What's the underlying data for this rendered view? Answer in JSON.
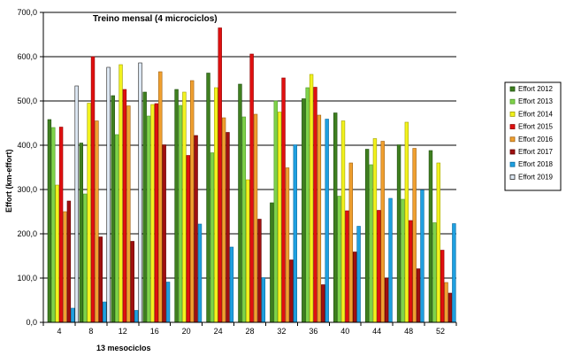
{
  "chart_data": {
    "type": "bar",
    "title": "Treino mensal (4 microciclos)",
    "xlabel": "13 mesociclos",
    "ylabel": "Effort (km-effort)",
    "categories": [
      "4",
      "8",
      "12",
      "16",
      "20",
      "24",
      "28",
      "32",
      "36",
      "40",
      "44",
      "48",
      "52"
    ],
    "ylim": [
      0,
      700
    ],
    "ytick_labels": [
      "0,0",
      "100,0",
      "200,0",
      "300,0",
      "400,0",
      "500,0",
      "600,0",
      "700,0"
    ],
    "grid": "horizontal",
    "legend_position": "right",
    "series": [
      {
        "name": "Effort 2012",
        "color": "#3f7f1f",
        "border": "#1f4f0f",
        "values": [
          458,
          405,
          512,
          520,
          526,
          563,
          538,
          270,
          505,
          473,
          391,
          401,
          388
        ]
      },
      {
        "name": "Effort 2013",
        "color": "#7fd24a",
        "border": "#4f9a2a",
        "values": [
          440,
          290,
          424,
          466,
          490,
          383,
          464,
          500,
          530,
          285,
          356,
          278,
          225
        ]
      },
      {
        "name": "Effort 2014",
        "color": "#f2f21e",
        "border": "#a0a000",
        "values": [
          310,
          495,
          582,
          492,
          520,
          530,
          322,
          475,
          560,
          455,
          415,
          452,
          360
        ]
      },
      {
        "name": "Effort 2015",
        "color": "#e01010",
        "border": "#900000",
        "values": [
          441,
          600,
          526,
          494,
          377,
          665,
          606,
          552,
          531,
          252,
          253,
          230,
          163
        ]
      },
      {
        "name": "Effort 2016",
        "color": "#f0a030",
        "border": "#a06010",
        "values": [
          250,
          455,
          489,
          566,
          546,
          462,
          470,
          349,
          468,
          360,
          409,
          393,
          90
        ]
      },
      {
        "name": "Effort 2017",
        "color": "#a01010",
        "border": "#600000",
        "values": [
          274,
          193,
          183,
          401,
          422,
          429,
          233,
          141,
          85,
          159,
          100,
          121,
          66
        ]
      },
      {
        "name": "Effort 2018",
        "color": "#1fa0e0",
        "border": "#0a6aa0",
        "values": [
          32,
          46,
          27,
          91,
          222,
          170,
          101,
          401,
          459,
          217,
          280,
          299,
          223
        ]
      },
      {
        "name": "Effort 2019",
        "color": "#dde8f4",
        "border": "#222222",
        "values": [
          534,
          576,
          586,
          null,
          null,
          null,
          null,
          null,
          null,
          null,
          null,
          null,
          null
        ]
      }
    ]
  }
}
